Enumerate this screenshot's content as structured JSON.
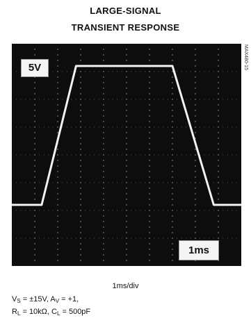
{
  "title_line1": "LARGE-SIGNAL",
  "title_line2": "TRANSIENT RESPONSE",
  "part_number": "MAX480-15",
  "volt_label": "5V",
  "time_label": "1ms",
  "xlabel": "1ms/div",
  "conditions": {
    "line1": {
      "vs": "V",
      "vs_sub": "S",
      "vs_val": " = ±15V, ",
      "av": "A",
      "av_sub": "V",
      "av_val": " = +1,"
    },
    "line2": {
      "rl": "R",
      "rl_sub": "L",
      "rl_val": " = 10kΩ, ",
      "cl": "C",
      "cl_sub": "L",
      "cl_val": " = 500pF"
    }
  },
  "colors": {
    "screen": "#0d0d0d",
    "trace": "#f2f2f2",
    "grid_dots": "#9a9a9a"
  },
  "chart_data": {
    "type": "line",
    "title": "LARGE-SIGNAL TRANSIENT RESPONSE",
    "xlabel": "1ms/div",
    "ylabel": "",
    "x_unit": "divisions (1ms/div)",
    "y_unit": "divisions (5V/div)",
    "xlim": [
      0,
      10
    ],
    "ylim": [
      0,
      8
    ],
    "grid": "dotted",
    "series": [
      {
        "x": [
          0,
          1.3,
          2.8,
          7.0,
          8.8,
          10
        ],
        "y": [
          2.2,
          2.2,
          7.2,
          7.2,
          2.2,
          2.2
        ]
      }
    ]
  }
}
